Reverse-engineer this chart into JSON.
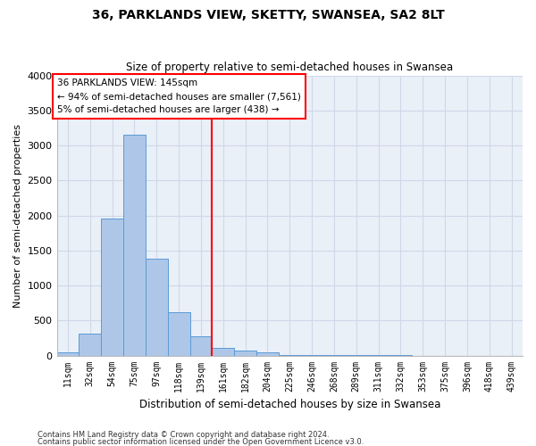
{
  "title": "36, PARKLANDS VIEW, SKETTY, SWANSEA, SA2 8LT",
  "subtitle": "Size of property relative to semi-detached houses in Swansea",
  "xlabel": "Distribution of semi-detached houses by size in Swansea",
  "ylabel": "Number of semi-detached properties",
  "categories": [
    "11sqm",
    "32sqm",
    "54sqm",
    "75sqm",
    "97sqm",
    "118sqm",
    "139sqm",
    "161sqm",
    "182sqm",
    "204sqm",
    "225sqm",
    "246sqm",
    "268sqm",
    "289sqm",
    "311sqm",
    "332sqm",
    "353sqm",
    "375sqm",
    "396sqm",
    "418sqm",
    "439sqm"
  ],
  "values": [
    50,
    310,
    1960,
    3150,
    1380,
    620,
    270,
    110,
    65,
    40,
    10,
    5,
    5,
    2,
    1,
    1,
    0,
    0,
    0,
    0,
    0
  ],
  "bar_color": "#aec6e8",
  "bar_edge_color": "#5b9bd5",
  "vline_x": 6.5,
  "annotation_line1": "36 PARKLANDS VIEW: 145sqm",
  "annotation_line2": "← 94% of semi-detached houses are smaller (7,561)",
  "annotation_line3": "5% of semi-detached houses are larger (438) →",
  "vline_color": "red",
  "annotation_box_color": "white",
  "annotation_box_edge": "red",
  "footer1": "Contains HM Land Registry data © Crown copyright and database right 2024.",
  "footer2": "Contains public sector information licensed under the Open Government Licence v3.0.",
  "ylim": [
    0,
    4000
  ],
  "yticks": [
    0,
    500,
    1000,
    1500,
    2000,
    2500,
    3000,
    3500,
    4000
  ],
  "grid_color": "#d0d8e8",
  "bg_color": "#eaf0f8"
}
